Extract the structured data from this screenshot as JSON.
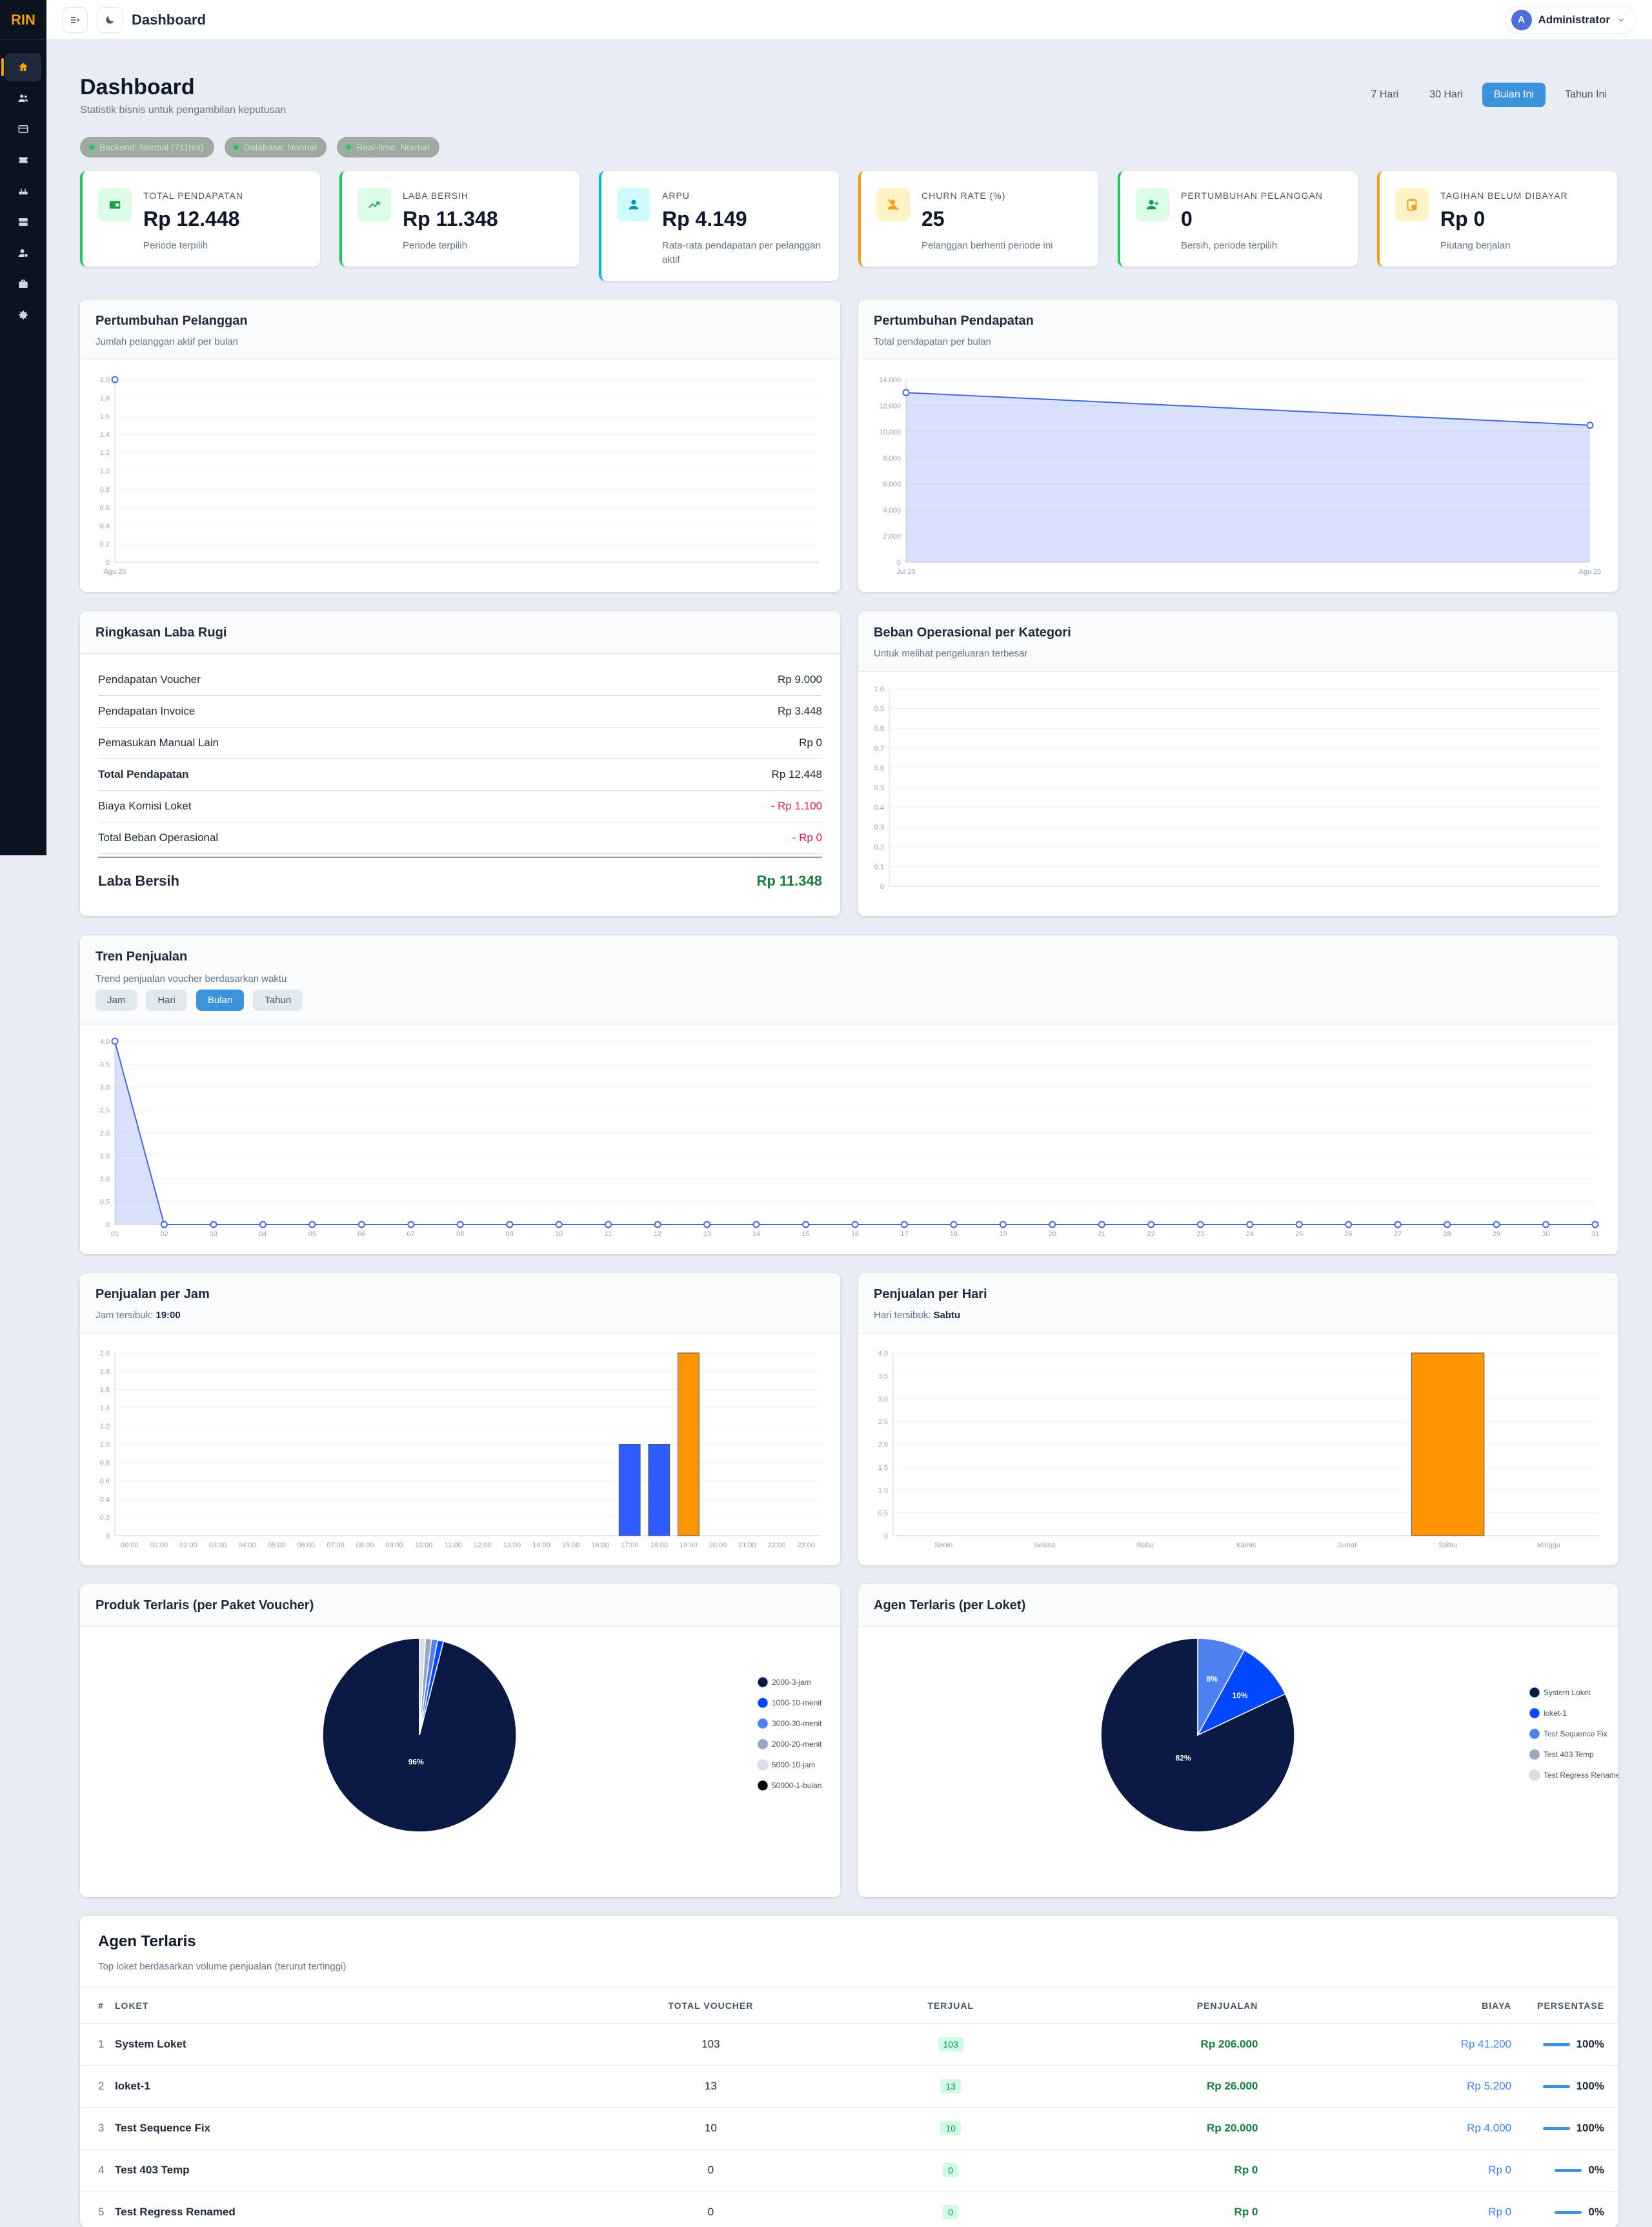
{
  "brand": "RIN",
  "topbar": {
    "title": "Dashboard",
    "user": "Administrator",
    "avatar_letter": "A"
  },
  "page": {
    "title": "Dashboard",
    "subtitle": "Statistik bisnis untuk pengambilan keputusan"
  },
  "periods": [
    "7 Hari",
    "30 Hari",
    "Bulan Ini",
    "Tahun Ini"
  ],
  "active_period": "Bulan Ini",
  "status_pills": [
    "Backend: Normal (711ms)",
    "Database: Normal",
    "Real-time: Normal"
  ],
  "kpis": [
    {
      "label": "TOTAL PENDAPATAN",
      "value": "Rp 12.448",
      "note": "Periode terpilih",
      "accent": "#22c55e",
      "icon": "wallet-icon",
      "icon_bg": "#dcfce7",
      "icon_color": "#16a34a"
    },
    {
      "label": "LABA BERSIH",
      "value": "Rp 11.348",
      "note": "Periode terpilih",
      "accent": "#22c55e",
      "icon": "trend-up-icon",
      "icon_bg": "#dcfce7",
      "icon_color": "#16a34a"
    },
    {
      "label": "ARPU",
      "value": "Rp 4.149",
      "note": "Rata-rata pendapatan per pelanggan aktif",
      "accent": "#06b6d4",
      "icon": "user-icon",
      "icon_bg": "#cffafe",
      "icon_color": "#0891b2"
    },
    {
      "label": "CHURN RATE (%)",
      "value": "25",
      "note": "Pelanggan berhenti periode ini",
      "accent": "#f59e0b",
      "icon": "user-off-icon",
      "icon_bg": "#fef3c7",
      "icon_color": "#f59e0b"
    },
    {
      "label": "PERTUMBUHAN PELANGGAN",
      "value": "0",
      "note": "Bersih, periode terpilih",
      "accent": "#22c55e",
      "icon": "user-plus-icon",
      "icon_bg": "#dcfce7",
      "icon_color": "#16a34a"
    },
    {
      "label": "TAGIHAN BELUM DIBAYAR",
      "value": "Rp 0",
      "note": "Piutang berjalan",
      "accent": "#f59e0b",
      "icon": "clipboard-icon",
      "icon_bg": "#fef3c7",
      "icon_color": "#f59e0b"
    }
  ],
  "customer_growth": {
    "title": "Pertumbuhan Pelanggan",
    "subtitle": "Jumlah pelanggan aktif per bulan",
    "chart_data": {
      "type": "line",
      "x": [
        "Agu 25"
      ],
      "series": [
        {
          "values": [
            2
          ]
        }
      ],
      "ylim": [
        0,
        2
      ],
      "yticks": [
        "0",
        "0.2",
        "0.4",
        "0.6",
        "0.8",
        "1.0",
        "1.2",
        "1.4",
        "1.6",
        "1.8",
        "2.0"
      ],
      "grid": true
    }
  },
  "revenue_growth": {
    "title": "Pertumbuhan Pendapatan",
    "subtitle": "Total pendapatan per bulan",
    "chart_data": {
      "type": "area",
      "x": [
        "Jul 25",
        "Agu 25"
      ],
      "series": [
        {
          "values": [
            13000,
            10500
          ]
        }
      ],
      "ylim": [
        0,
        14000
      ],
      "yticks": [
        "0",
        "2,000",
        "4,000",
        "6,000",
        "8,000",
        "10,000",
        "12,000",
        "14,000"
      ],
      "grid": true
    }
  },
  "profit_loss": {
    "title": "Ringkasan Laba Rugi",
    "rows": [
      {
        "label": "Pendapatan Voucher",
        "value": "Rp 9.000",
        "kind": "normal"
      },
      {
        "label": "Pendapatan Invoice",
        "value": "Rp 3.448",
        "kind": "normal"
      },
      {
        "label": "Pemasukan Manual Lain",
        "value": "Rp 0",
        "kind": "normal"
      },
      {
        "label": "Total Pendapatan",
        "value": "Rp 12.448",
        "kind": "bold"
      },
      {
        "label": "Biaya Komisi Loket",
        "value": "- Rp 1.100",
        "kind": "neg"
      },
      {
        "label": "Total Beban Operasional",
        "value": "- Rp 0",
        "kind": "neg"
      }
    ],
    "net_label": "Laba Bersih",
    "net_value": "Rp 11.348"
  },
  "opex": {
    "title": "Beban Operasional per Kategori",
    "subtitle": "Untuk melihat pengeluaran terbesar",
    "chart_data": {
      "type": "bar",
      "categories": [],
      "values": [],
      "ylim": [
        0,
        1
      ],
      "yticks": [
        "0",
        "0.1",
        "0.2",
        "0.3",
        "0.4",
        "0.5",
        "0.6",
        "0.7",
        "0.8",
        "0.9",
        "1.0"
      ],
      "grid": true
    }
  },
  "sales_trend": {
    "title": "Tren Penjualan",
    "subtitle": "Trend penjualan voucher berdasarkan waktu",
    "tabs": [
      "Jam",
      "Hari",
      "Bulan",
      "Tahun"
    ],
    "active_tab": "Bulan",
    "chart_data": {
      "type": "area",
      "x": [
        "01",
        "02",
        "03",
        "04",
        "05",
        "06",
        "07",
        "08",
        "09",
        "10",
        "11",
        "12",
        "13",
        "14",
        "15",
        "16",
        "17",
        "18",
        "19",
        "20",
        "21",
        "22",
        "23",
        "24",
        "25",
        "26",
        "27",
        "28",
        "29",
        "30",
        "31"
      ],
      "series": [
        {
          "values": [
            4,
            0,
            0,
            0,
            0,
            0,
            0,
            0,
            0,
            0,
            0,
            0,
            0,
            0,
            0,
            0,
            0,
            0,
            0,
            0,
            0,
            0,
            0,
            0,
            0,
            0,
            0,
            0,
            0,
            0,
            0
          ]
        }
      ],
      "ylim": [
        0,
        4
      ],
      "yticks": [
        "0",
        "0.5",
        "1.0",
        "1.5",
        "2.0",
        "2.5",
        "3.0",
        "3.5",
        "4.0"
      ],
      "grid": true
    }
  },
  "sales_hour": {
    "title": "Penjualan per Jam",
    "subtitle_label": "Jam tersibuk: ",
    "subtitle_value": "19:00",
    "chart_data": {
      "type": "bar",
      "categories": [
        "00:00",
        "01:00",
        "02:00",
        "03:00",
        "04:00",
        "05:00",
        "06:00",
        "07:00",
        "08:00",
        "09:00",
        "10:00",
        "11:00",
        "12:00",
        "13:00",
        "14:00",
        "15:00",
        "16:00",
        "17:00",
        "18:00",
        "19:00",
        "20:00",
        "21:00",
        "22:00",
        "23:00"
      ],
      "values": [
        0,
        0,
        0,
        0,
        0,
        0,
        0,
        0,
        0,
        0,
        0,
        0,
        0,
        0,
        0,
        0,
        0,
        1,
        1,
        2,
        0,
        0,
        0,
        0
      ],
      "highlight": "19:00",
      "ylim": [
        0,
        2
      ],
      "yticks": [
        "0",
        "0.2",
        "0.4",
        "0.6",
        "0.8",
        "1.0",
        "1.2",
        "1.4",
        "1.6",
        "1.8",
        "2.0"
      ],
      "grid": true
    }
  },
  "sales_day": {
    "title": "Penjualan per Hari",
    "subtitle_label": "Hari tersibuk: ",
    "subtitle_value": "Sabtu",
    "chart_data": {
      "type": "bar",
      "categories": [
        "Senin",
        "Selasa",
        "Rabu",
        "Kamis",
        "Jumat",
        "Sabtu",
        "Minggu"
      ],
      "values": [
        0,
        0,
        0,
        0,
        0,
        4,
        0
      ],
      "highlight": "Sabtu",
      "ylim": [
        0,
        4
      ],
      "yticks": [
        "0",
        "0.5",
        "1.0",
        "1.5",
        "2.0",
        "2.5",
        "3.0",
        "3.5",
        "4.0"
      ],
      "grid": true
    }
  },
  "top_products": {
    "title": "Produk Terlaris (per Paket Voucher)",
    "chart_data": {
      "type": "pie",
      "labels": [
        "2000-3-jam",
        "1000-10-menit",
        "3000-30-menit",
        "2000-20-menit",
        "5000-10-jam",
        "50000-1-bulan"
      ],
      "values": [
        96,
        1,
        1,
        1,
        1,
        0
      ],
      "slice_labels": [
        "96%",
        "",
        "",
        "",
        "",
        ""
      ],
      "colors": [
        "#0b1a45",
        "#0047ff",
        "#4f80f0",
        "#9aa6c0",
        "#d9dee8",
        "#000000"
      ]
    }
  },
  "top_agents_pie": {
    "title": "Agen Terlaris (per Loket)",
    "chart_data": {
      "type": "pie",
      "labels": [
        "System Loket",
        "loket-1",
        "Test Sequence Fix",
        "Test 403 Temp",
        "Test Regress Renamed"
      ],
      "values": [
        82,
        10,
        8,
        0,
        0
      ],
      "slice_labels": [
        "82%",
        "10%",
        "8%",
        "",
        ""
      ],
      "colors": [
        "#0b1a45",
        "#0047ff",
        "#4f80f0",
        "#9aa6c0",
        "#d9dee8"
      ]
    }
  },
  "agents_table": {
    "title": "Agen Terlaris",
    "subtitle": "Top loket berdasarkan volume penjualan (terurut tertinggi)",
    "headers": [
      "#",
      "LOKET",
      "TOTAL VOUCHER",
      "TERJUAL",
      "PENJUALAN",
      "BIAYA",
      "PERSENTASE"
    ],
    "rows": [
      {
        "no": "1",
        "name": "System Loket",
        "total": "103",
        "sold": "103",
        "sales": "Rp 206.000",
        "fee": "Rp 41.200",
        "pct": "100%",
        "pct_value": 100
      },
      {
        "no": "2",
        "name": "loket-1",
        "total": "13",
        "sold": "13",
        "sales": "Rp 26.000",
        "fee": "Rp 5.200",
        "pct": "100%",
        "pct_value": 100
      },
      {
        "no": "3",
        "name": "Test Sequence Fix",
        "total": "10",
        "sold": "10",
        "sales": "Rp 20.000",
        "fee": "Rp 4.000",
        "pct": "100%",
        "pct_value": 100
      },
      {
        "no": "4",
        "name": "Test 403 Temp",
        "total": "0",
        "sold": "0",
        "sales": "Rp 0",
        "fee": "Rp 0",
        "pct": "0%",
        "pct_value": 0
      },
      {
        "no": "5",
        "name": "Test Regress Renamed",
        "total": "0",
        "sold": "0",
        "sales": "Rp 0",
        "fee": "Rp 0",
        "pct": "0%",
        "pct_value": 0
      }
    ]
  }
}
